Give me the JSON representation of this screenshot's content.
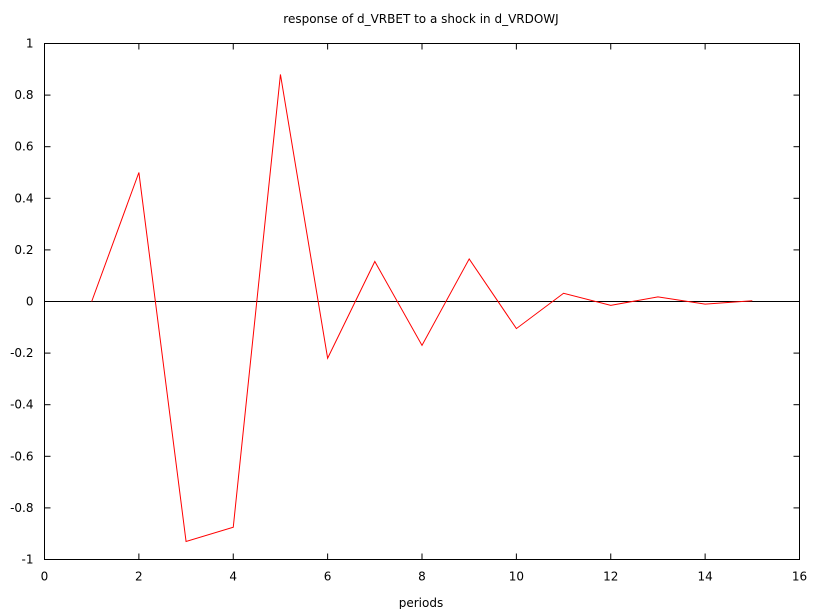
{
  "chart_data": {
    "type": "line",
    "title": "response of d_VRBET to a shock in d_VRDOWJ",
    "xlabel": "periods",
    "ylabel": "",
    "xlim": [
      0,
      16
    ],
    "ylim": [
      -1,
      1
    ],
    "x_ticks": [
      0,
      2,
      4,
      6,
      8,
      10,
      12,
      14,
      16
    ],
    "x_tick_labels": [
      "0",
      "2",
      "4",
      "6",
      "8",
      "10",
      "12",
      "14",
      "16"
    ],
    "y_ticks": [
      -1,
      -0.8,
      -0.6,
      -0.4,
      -0.2,
      0,
      0.2,
      0.4,
      0.6,
      0.8,
      1
    ],
    "y_tick_labels": [
      "-1",
      "-0.8",
      "-0.6",
      "-0.4",
      "-0.2",
      "0",
      "0.2",
      "0.4",
      "0.6",
      "0.8",
      "1"
    ],
    "grid": false,
    "zero_line": true,
    "series": [
      {
        "color": "#ff0000",
        "x": [
          1,
          2,
          3,
          4,
          5,
          6,
          7,
          8,
          9,
          10,
          11,
          12,
          13,
          14,
          15
        ],
        "values": [
          0.0,
          0.5,
          -0.93,
          -0.875,
          0.88,
          -0.22,
          0.155,
          -0.17,
          0.165,
          -0.105,
          0.032,
          -0.015,
          0.018,
          -0.01,
          0.003
        ]
      }
    ]
  }
}
